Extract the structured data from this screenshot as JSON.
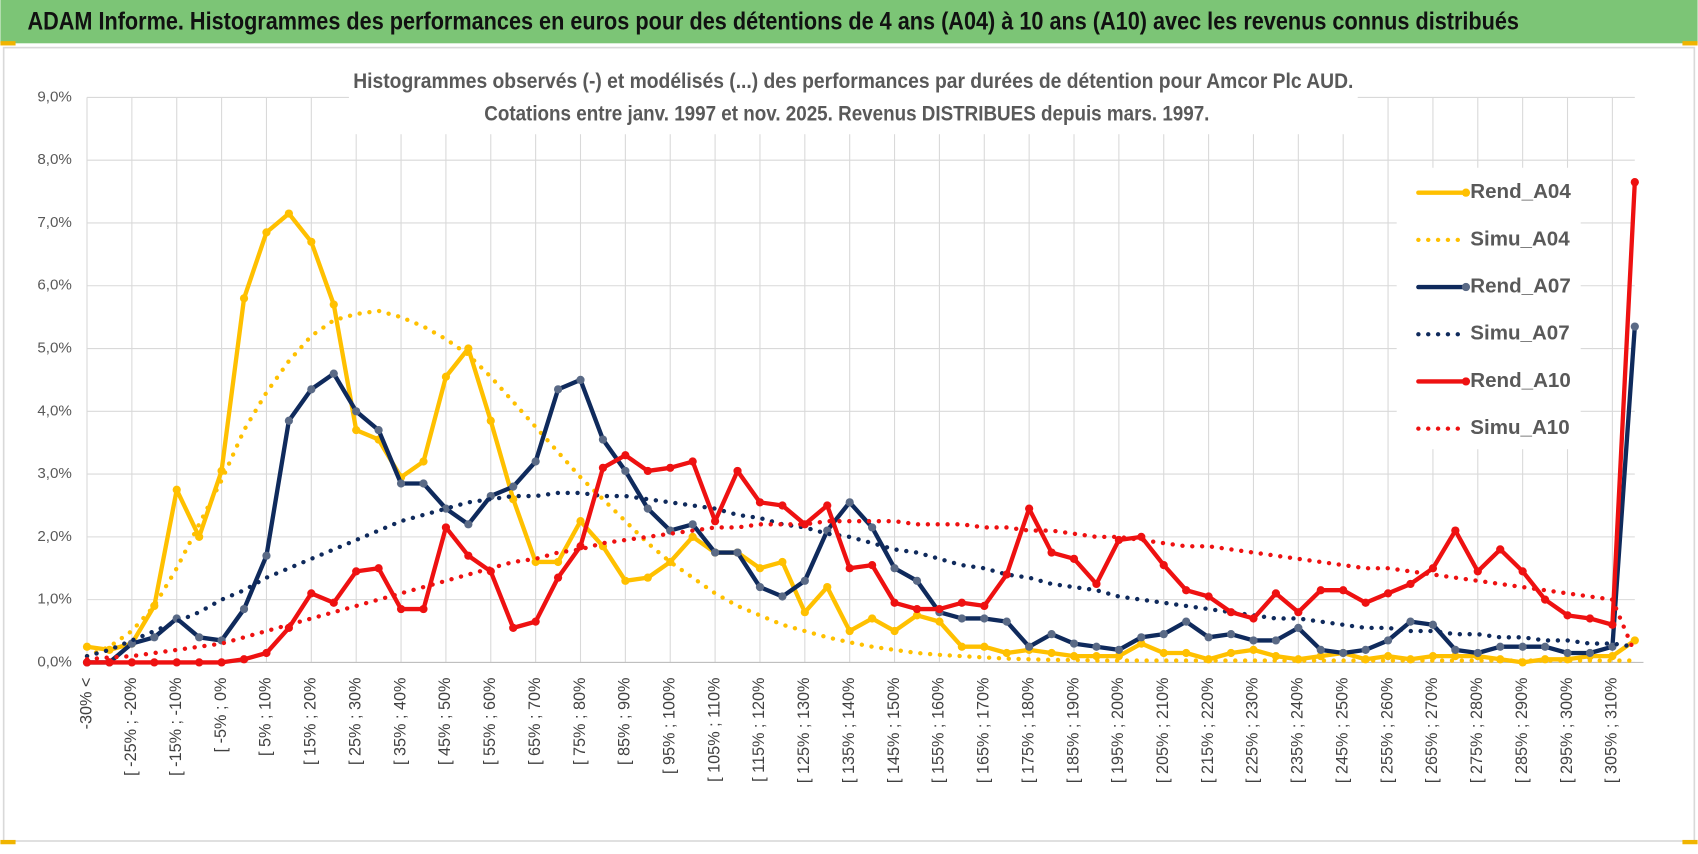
{
  "header": {
    "title": "ADAM Informe. Histogrammes des performances en euros pour des détentions de 4 ans (A04) à 10 ans (A10) avec les revenus connus distribués"
  },
  "chart_data": {
    "type": "line",
    "title": [
      "Histogrammes observés (-) et modélisés (...) des performances par durées de détention pour Amcor Plc AUD.",
      "Cotations entre janv. 1997 et nov. 2025. Revenus DISTRIBUES depuis mars. 1997."
    ],
    "categories": [
      "-30% <",
      null,
      "[ -25% ; -20%",
      null,
      "[ -15% ; -10%",
      null,
      "[ -5% ; 0%",
      null,
      "[ 5% ; 10%",
      null,
      "[ 15% ; 20%",
      null,
      "[ 25% ; 30%",
      null,
      "[ 35% ; 40%",
      null,
      "[ 45% ; 50%",
      null,
      "[ 55% ; 60%",
      null,
      "[ 65% ; 70%",
      null,
      "[ 75% ; 80%",
      null,
      "[ 85% ; 90%",
      null,
      "[ 95% ; 100%",
      null,
      "[ 105% ; 110%",
      null,
      "[ 115% ; 120%",
      null,
      "[ 125% ; 130%",
      null,
      "[ 135% ; 140%",
      null,
      "[ 145% ; 150%",
      null,
      "[ 155% ; 160%",
      null,
      "[ 165% ; 170%",
      null,
      "[ 175% ; 180%",
      null,
      "[ 185% ; 190%",
      null,
      "[ 195% ; 200%",
      null,
      "[ 205% ; 210%",
      null,
      "[ 215% ; 220%",
      null,
      "[ 225% ; 230%",
      null,
      "[ 235% ; 240%",
      null,
      "[ 245% ; 250%",
      null,
      "[ 255% ; 260%",
      null,
      "[ 265% ; 270%",
      null,
      "[ 275% ; 280%",
      null,
      "[ 285% ; 290%",
      null,
      "[ 295% ; 300%",
      null,
      "[ 305% ; 310%",
      null
    ],
    "ylim": [
      0,
      9
    ],
    "yticks": [
      {
        "value": 0,
        "label": "0,0%"
      },
      {
        "value": 1,
        "label": "1,0%"
      },
      {
        "value": 2,
        "label": "2,0%"
      },
      {
        "value": 3,
        "label": "3,0%"
      },
      {
        "value": 4,
        "label": "4,0%"
      },
      {
        "value": 5,
        "label": "5,0%"
      },
      {
        "value": 6,
        "label": "6,0%"
      },
      {
        "value": 7,
        "label": "7,0%"
      },
      {
        "value": 8,
        "label": "8,0%"
      },
      {
        "value": 9,
        "label": "9,0%"
      }
    ],
    "grid": true,
    "legend": "upper right",
    "series": [
      {
        "name": "Rend_A04",
        "color": "#ffc000",
        "style": "solid",
        "markers": true,
        "marker_color": "#ffc000",
        "values": [
          0.25,
          0.2,
          0.3,
          0.9,
          2.75,
          2.0,
          3.05,
          5.8,
          6.85,
          7.15,
          6.7,
          5.7,
          3.7,
          3.55,
          2.95,
          3.2,
          4.55,
          5.0,
          3.85,
          2.6,
          1.6,
          1.6,
          2.25,
          1.85,
          1.3,
          1.35,
          1.6,
          2.0,
          1.75,
          1.75,
          1.5,
          1.6,
          0.8,
          1.2,
          0.5,
          0.7,
          0.5,
          0.75,
          0.65,
          0.25,
          0.25,
          0.15,
          0.2,
          0.15,
          0.1,
          0.1,
          0.1,
          0.3,
          0.15,
          0.15,
          0.05,
          0.15,
          0.2,
          0.1,
          0.05,
          0.1,
          0.15,
          0.05,
          0.1,
          0.05,
          0.1,
          0.1,
          0.1,
          0.05,
          0.0,
          0.05,
          0.05,
          0.1,
          0.1,
          0.35
        ]
      },
      {
        "name": "Simu_A04",
        "color": "#ffc000",
        "style": "dotted",
        "markers": false,
        "values": [
          0.1,
          0.25,
          0.5,
          0.9,
          1.5,
          2.2,
          2.9,
          3.7,
          4.3,
          4.8,
          5.2,
          5.45,
          5.55,
          5.6,
          5.5,
          5.35,
          5.15,
          4.9,
          4.55,
          4.15,
          3.75,
          3.35,
          2.95,
          2.6,
          2.25,
          1.9,
          1.6,
          1.35,
          1.1,
          0.9,
          0.75,
          0.6,
          0.5,
          0.4,
          0.32,
          0.25,
          0.2,
          0.15,
          0.12,
          0.1,
          0.08,
          0.06,
          0.05,
          0.04,
          0.04,
          0.03,
          0.03,
          0.03,
          0.03,
          0.03,
          0.03,
          0.03,
          0.03,
          0.03,
          0.03,
          0.03,
          0.03,
          0.03,
          0.03,
          0.03,
          0.03,
          0.03,
          0.03,
          0.03,
          0.03,
          0.03,
          0.03,
          0.03,
          0.03,
          0.03
        ]
      },
      {
        "name": "Rend_A07",
        "color": "#0f2a5c",
        "style": "solid",
        "markers": true,
        "marker_color": "#5a6a86",
        "values": [
          0.0,
          0.0,
          0.3,
          0.4,
          0.7,
          0.4,
          0.35,
          0.85,
          1.7,
          3.85,
          4.35,
          4.6,
          4.0,
          3.7,
          2.85,
          2.85,
          2.45,
          2.2,
          2.65,
          2.8,
          3.2,
          4.35,
          4.5,
          3.55,
          3.05,
          2.45,
          2.1,
          2.2,
          1.75,
          1.75,
          1.2,
          1.05,
          1.3,
          2.1,
          2.55,
          2.15,
          1.5,
          1.3,
          0.8,
          0.7,
          0.7,
          0.65,
          0.25,
          0.45,
          0.3,
          0.25,
          0.2,
          0.4,
          0.45,
          0.65,
          0.4,
          0.45,
          0.35,
          0.35,
          0.55,
          0.2,
          0.15,
          0.2,
          0.35,
          0.65,
          0.6,
          0.2,
          0.15,
          0.25,
          0.25,
          0.25,
          0.15,
          0.15,
          0.25,
          5.35
        ]
      },
      {
        "name": "Simu_A07",
        "color": "#0f2a5c",
        "style": "dotted",
        "markers": false,
        "values": [
          0.1,
          0.2,
          0.35,
          0.5,
          0.65,
          0.8,
          1.0,
          1.15,
          1.35,
          1.5,
          1.65,
          1.8,
          1.95,
          2.1,
          2.25,
          2.35,
          2.45,
          2.55,
          2.6,
          2.65,
          2.65,
          2.7,
          2.7,
          2.65,
          2.65,
          2.6,
          2.55,
          2.5,
          2.45,
          2.35,
          2.3,
          2.2,
          2.15,
          2.05,
          2.0,
          1.9,
          1.8,
          1.75,
          1.65,
          1.55,
          1.5,
          1.4,
          1.35,
          1.25,
          1.2,
          1.15,
          1.05,
          1.0,
          0.95,
          0.9,
          0.85,
          0.8,
          0.75,
          0.7,
          0.7,
          0.65,
          0.6,
          0.55,
          0.55,
          0.5,
          0.5,
          0.45,
          0.45,
          0.4,
          0.4,
          0.35,
          0.35,
          0.3,
          0.3,
          0.25
        ]
      },
      {
        "name": "Rend_A10",
        "color": "#ee1111",
        "style": "solid",
        "markers": true,
        "marker_color": "#ee1111",
        "values": [
          0.0,
          0.0,
          0.0,
          0.0,
          0.0,
          0.0,
          0.0,
          0.05,
          0.15,
          0.55,
          1.1,
          0.95,
          1.45,
          1.5,
          0.85,
          0.85,
          2.15,
          1.7,
          1.45,
          0.55,
          0.65,
          1.35,
          1.85,
          3.1,
          3.3,
          3.05,
          3.1,
          3.2,
          2.25,
          3.05,
          2.55,
          2.5,
          2.2,
          2.5,
          1.5,
          1.55,
          0.95,
          0.85,
          0.85,
          0.95,
          0.9,
          1.4,
          2.45,
          1.75,
          1.65,
          1.25,
          1.95,
          2.0,
          1.55,
          1.15,
          1.05,
          0.8,
          0.7,
          1.1,
          0.8,
          1.15,
          1.15,
          0.95,
          1.1,
          1.25,
          1.5,
          2.1,
          1.45,
          1.8,
          1.45,
          1.0,
          0.75,
          0.7,
          0.6,
          7.65
        ]
      },
      {
        "name": "Simu_A10",
        "color": "#ee1111",
        "style": "dotted",
        "markers": false,
        "values": [
          0.05,
          0.08,
          0.1,
          0.15,
          0.2,
          0.25,
          0.3,
          0.4,
          0.5,
          0.6,
          0.7,
          0.8,
          0.9,
          1.0,
          1.1,
          1.2,
          1.3,
          1.4,
          1.5,
          1.6,
          1.65,
          1.75,
          1.8,
          1.9,
          1.95,
          2.0,
          2.05,
          2.1,
          2.15,
          2.15,
          2.2,
          2.2,
          2.2,
          2.25,
          2.25,
          2.25,
          2.25,
          2.2,
          2.2,
          2.2,
          2.15,
          2.15,
          2.1,
          2.1,
          2.05,
          2.0,
          2.0,
          1.95,
          1.9,
          1.85,
          1.85,
          1.8,
          1.75,
          1.7,
          1.65,
          1.6,
          1.55,
          1.5,
          1.5,
          1.45,
          1.4,
          1.35,
          1.3,
          1.25,
          1.2,
          1.15,
          1.1,
          1.05,
          1.0,
          0.15
        ]
      }
    ]
  }
}
